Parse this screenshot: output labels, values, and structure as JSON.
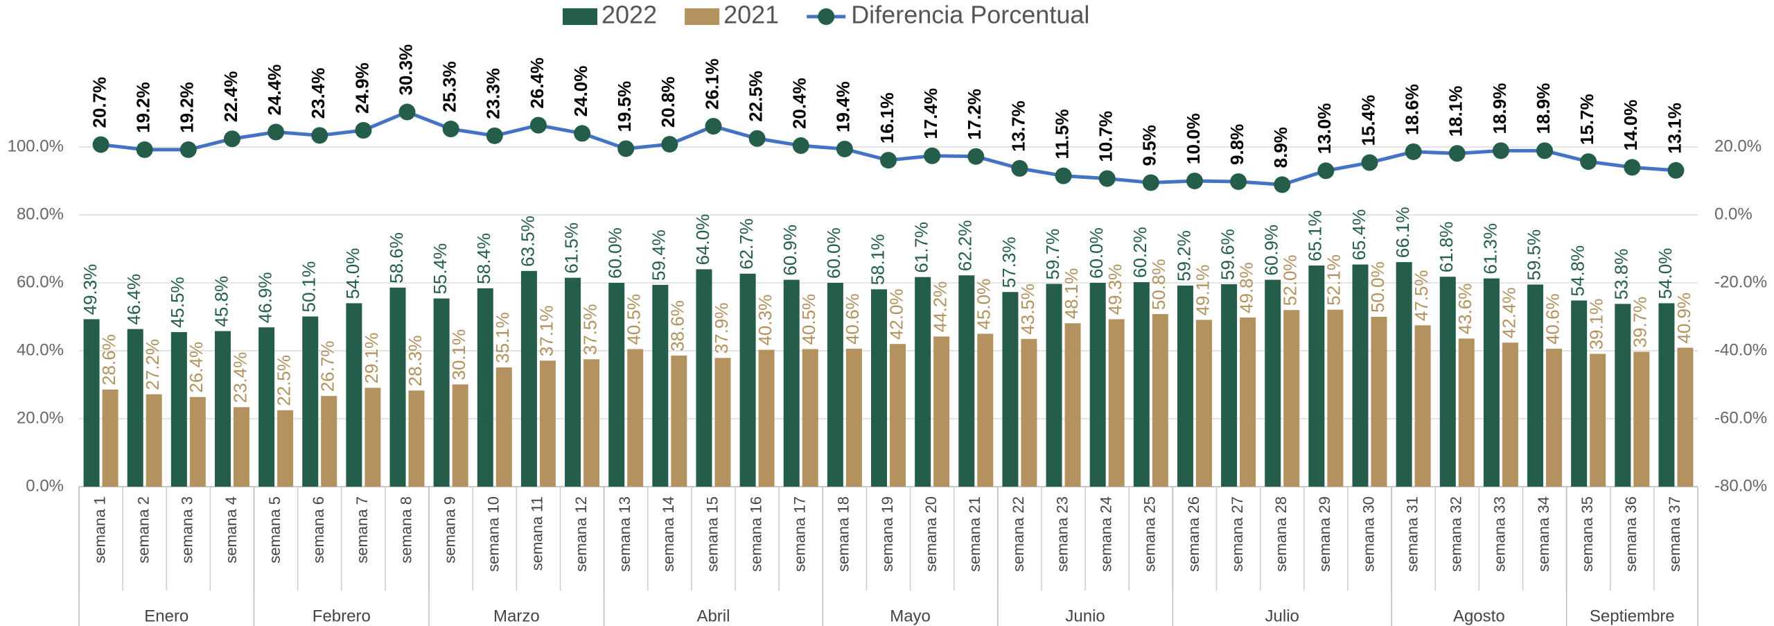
{
  "chart_data": {
    "type": "combo",
    "category_groups": [
      {
        "name": "Enero",
        "categories": [
          "semana 1",
          "semana 2",
          "semana 3",
          "semana 4"
        ]
      },
      {
        "name": "Febrero",
        "categories": [
          "semana 5",
          "semana 6",
          "semana 7",
          "semana 8"
        ]
      },
      {
        "name": "Marzo",
        "categories": [
          "semana 9",
          "semana 10",
          "semana 11",
          "semana 12"
        ]
      },
      {
        "name": "Abril",
        "categories": [
          "semana 13",
          "semana 14",
          "semana 15",
          "semana 16",
          "semana 17"
        ]
      },
      {
        "name": "Mayo",
        "categories": [
          "semana 18",
          "semana 19",
          "semana 20",
          "semana 21"
        ]
      },
      {
        "name": "Junio",
        "categories": [
          "semana 22",
          "semana 23",
          "semana 24",
          "semana 25"
        ]
      },
      {
        "name": "Julio",
        "categories": [
          "semana 26",
          "semana 27",
          "semana 28",
          "semana 29",
          "semana 30"
        ]
      },
      {
        "name": "Agosto",
        "categories": [
          "semana 31",
          "semana 32",
          "semana 33",
          "semana 34"
        ]
      },
      {
        "name": "Septiembre",
        "categories": [
          "semana 35",
          "semana 36",
          "semana 37"
        ]
      }
    ],
    "series": [
      {
        "name": "2022",
        "type": "bar",
        "color": "#245e4b",
        "label_color": "#245e4b",
        "values": [
          49.3,
          46.4,
          45.5,
          45.8,
          46.9,
          50.1,
          54.0,
          58.6,
          55.4,
          58.4,
          63.5,
          61.5,
          60.0,
          59.4,
          64.0,
          62.7,
          60.9,
          60.0,
          58.1,
          61.7,
          62.2,
          57.3,
          59.7,
          60.0,
          60.2,
          59.2,
          59.6,
          60.9,
          65.1,
          65.4,
          66.1,
          61.8,
          61.3,
          59.5,
          54.8,
          53.8,
          54.0
        ],
        "value_labels": [
          "49.3%",
          "46.4%",
          "45.5%",
          "45.8%",
          "46.9%",
          "50.1%",
          "54.0%",
          "58.6%",
          "55.4%",
          "58.4%",
          "63.5%",
          "61.5%",
          "60.0%",
          "59.4%",
          "64.0%",
          "62.7%",
          "60.9%",
          "60.0%",
          "58.1%",
          "61.7%",
          "62.2%",
          "57.3%",
          "59.7%",
          "60.0%",
          "60.2%",
          "59.2%",
          "59.6%",
          "60.9%",
          "65.1%",
          "65.4%",
          "66.1%",
          "61.8%",
          "61.3%",
          "59.5%",
          "54.8%",
          "53.8%",
          "54.0%"
        ]
      },
      {
        "name": "2021",
        "type": "bar",
        "color": "#b39260",
        "label_color": "#b39260",
        "values": [
          28.6,
          27.2,
          26.4,
          23.4,
          22.5,
          26.7,
          29.1,
          28.3,
          30.1,
          35.1,
          37.1,
          37.5,
          40.5,
          38.6,
          37.9,
          40.3,
          40.5,
          40.6,
          42.0,
          44.2,
          45.0,
          43.5,
          48.1,
          49.3,
          50.8,
          49.1,
          49.8,
          52.0,
          52.1,
          50.0,
          47.5,
          43.6,
          42.4,
          40.6,
          39.1,
          39.7,
          40.9
        ],
        "value_labels": [
          "28.6%",
          "27.2%",
          "26.4%",
          "23.4%",
          "22.5%",
          "26.7%",
          "29.1%",
          "28.3%",
          "30.1%",
          "35.1%",
          "37.1%",
          "37.5%",
          "40.5%",
          "38.6%",
          "37.9%",
          "40.3%",
          "40.5%",
          "40.6%",
          "42.0%",
          "44.2%",
          "45.0%",
          "43.5%",
          "48.1%",
          "49.3%",
          "50.8%",
          "49.1%",
          "49.8%",
          "52.0%",
          "52.1%",
          "50.0%",
          "47.5%",
          "43.6%",
          "42.4%",
          "40.6%",
          "39.1%",
          "39.7%",
          "40.9%"
        ]
      },
      {
        "name": "Diferencia Porcentual",
        "type": "line",
        "axis": "y2",
        "color": "#4472c4",
        "marker_color": "#245e4b",
        "label_color": "#000000",
        "values": [
          20.7,
          19.2,
          19.2,
          22.4,
          24.4,
          23.4,
          24.9,
          30.3,
          25.3,
          23.3,
          26.4,
          24.0,
          19.5,
          20.8,
          26.1,
          22.5,
          20.4,
          19.4,
          16.1,
          17.4,
          17.2,
          13.7,
          11.5,
          10.7,
          9.5,
          10.0,
          9.8,
          8.9,
          13.0,
          15.4,
          18.6,
          18.1,
          18.9,
          18.9,
          15.7,
          14.0,
          13.1
        ],
        "value_labels": [
          "20.7%",
          "19.2%",
          "19.2%",
          "22.4%",
          "24.4%",
          "23.4%",
          "24.9%",
          "30.3%",
          "25.3%",
          "23.3%",
          "26.4%",
          "24.0%",
          "19.5%",
          "20.8%",
          "26.1%",
          "22.5%",
          "20.4%",
          "19.4%",
          "16.1%",
          "17.4%",
          "17.2%",
          "13.7%",
          "11.5%",
          "10.7%",
          "9.5%",
          "10.0%",
          "9.8%",
          "8.9%",
          "13.0%",
          "15.4%",
          "18.6%",
          "18.1%",
          "18.9%",
          "18.9%",
          "15.7%",
          "14.0%",
          "13.1%"
        ]
      }
    ],
    "ylim": [
      0,
      120
    ],
    "yticks": [
      {
        "value": 0,
        "label": "0.0%"
      },
      {
        "value": 20,
        "label": "20.0%"
      },
      {
        "value": 40,
        "label": "40.0%"
      },
      {
        "value": 60,
        "label": "60.0%"
      },
      {
        "value": 80,
        "label": "80.0%"
      },
      {
        "value": 100,
        "label": "100.0%"
      }
    ],
    "y2lim": [
      -80,
      40
    ],
    "y2ticks": [
      {
        "value": -80,
        "label": "-80.0%"
      },
      {
        "value": -60,
        "label": "-60.0%"
      },
      {
        "value": -40,
        "label": "-40.0%"
      },
      {
        "value": -20,
        "label": "-20.0%"
      },
      {
        "value": 0,
        "label": "0.0%"
      },
      {
        "value": 20,
        "label": "20.0%"
      }
    ],
    "grid": true,
    "legend": "top"
  }
}
